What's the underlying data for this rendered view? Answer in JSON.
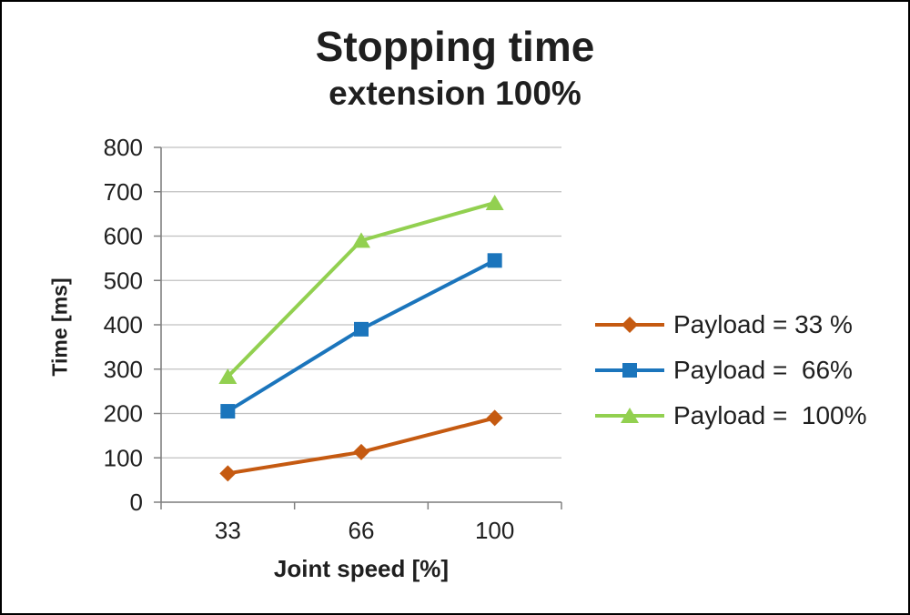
{
  "canvas": {
    "background": "#ffffff",
    "border_color": "#000000",
    "text_color": "#1f1f1f",
    "gridline_color": "#c0c0c0",
    "axis_color": "#808080"
  },
  "chart_data": {
    "type": "line",
    "title": "Stopping time",
    "subtitle": "extension 100%",
    "xlabel": "Joint speed [%]",
    "ylabel": "Time [ms]",
    "categories": [
      "33",
      "66",
      "100"
    ],
    "ylim": [
      0,
      800
    ],
    "yticks": [
      0,
      100,
      200,
      300,
      400,
      500,
      600,
      700,
      800
    ],
    "grid": "horizontal",
    "legend_position": "right",
    "series": [
      {
        "name": "Payload = 33 %",
        "marker": "diamond",
        "color": "#c55a11",
        "values": [
          65,
          113,
          190
        ]
      },
      {
        "name": "Payload =  66%",
        "marker": "square",
        "color": "#1b75bc",
        "values": [
          205,
          390,
          545
        ]
      },
      {
        "name": "Payload =  100%",
        "marker": "triangle",
        "color": "#92d050",
        "values": [
          283,
          590,
          675
        ]
      }
    ]
  }
}
